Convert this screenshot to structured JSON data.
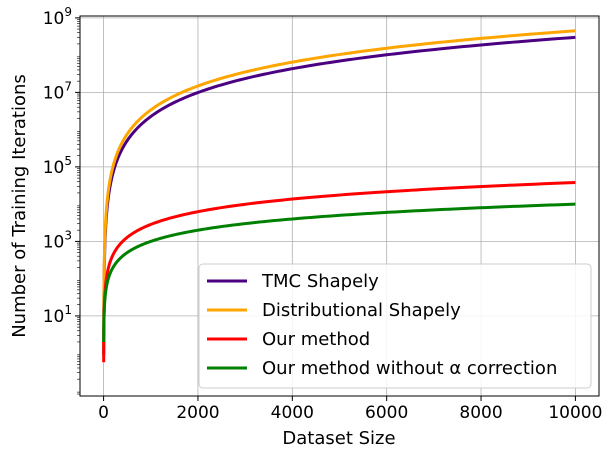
{
  "chart_data": {
    "type": "line",
    "title": "",
    "xlabel": "Dataset Size",
    "ylabel": "Number of Training Iterations",
    "xlim": [
      -500,
      10500
    ],
    "ylim_log10": [
      -1.15,
      9.05
    ],
    "yscale": "log",
    "grid": true,
    "legend_position": "lower-right",
    "x_ticks": [
      0,
      2000,
      4000,
      6000,
      8000,
      10000
    ],
    "x_tick_labels": [
      "0",
      "2000",
      "4000",
      "6000",
      "8000",
      "10000"
    ],
    "y_tick_exponents": [
      1,
      3,
      5,
      7,
      9
    ],
    "y_tick_base": "10",
    "series": [
      {
        "name": "TMC Shapely",
        "color": "#4b0082",
        "model": "n^2 log n",
        "x_range": [
          2,
          10000
        ],
        "value_at_max": 300000000
      },
      {
        "name": "Distributional Shapely",
        "color": "#ffa500",
        "model": "n^2 log n",
        "x_range": [
          2,
          10000
        ],
        "value_at_max": 450000000
      },
      {
        "name": "Our method",
        "color": "#ff0000",
        "model": "n log n",
        "x_range": [
          2,
          10000
        ],
        "value_at_max": 38000
      },
      {
        "name": "Our method without α correction",
        "color": "#008000",
        "model": "n",
        "x_range": [
          2,
          10000
        ],
        "value_at_max": 10000
      }
    ]
  }
}
